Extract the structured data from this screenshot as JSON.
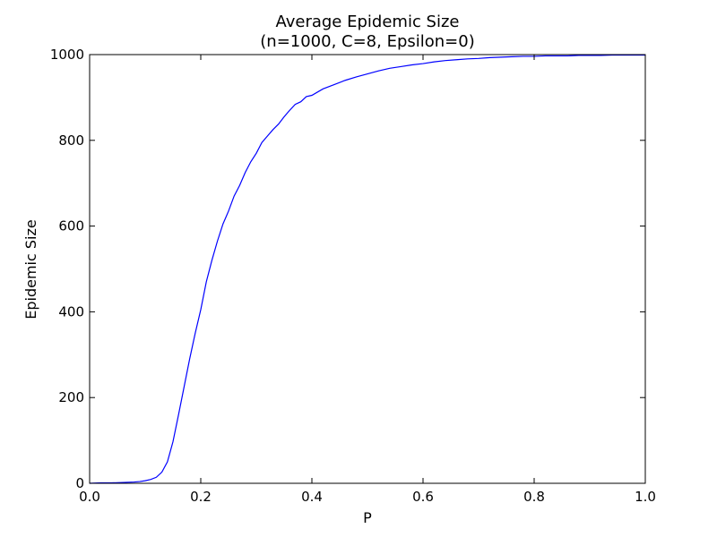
{
  "chart_data": {
    "type": "line",
    "title": "Average Epidemic Size",
    "subtitle": "(n=1000, C=8, Epsilon=0)",
    "xlabel": "P",
    "ylabel": "Epidemic Size",
    "xlim": [
      0.0,
      1.0
    ],
    "ylim": [
      0,
      1000
    ],
    "xticks": [
      "0.0",
      "0.2",
      "0.4",
      "0.6",
      "0.8",
      "1.0"
    ],
    "yticks": [
      "0",
      "200",
      "400",
      "600",
      "800",
      "1000"
    ],
    "grid": false,
    "line_color": "#0000ff",
    "series": [
      {
        "x": [
          0.0,
          0.02,
          0.04,
          0.06,
          0.08,
          0.09,
          0.1,
          0.11,
          0.12,
          0.13,
          0.14,
          0.15,
          0.16,
          0.17,
          0.18,
          0.19,
          0.2,
          0.21,
          0.22,
          0.23,
          0.24,
          0.25,
          0.26,
          0.27,
          0.28,
          0.29,
          0.3,
          0.31,
          0.32,
          0.33,
          0.34,
          0.35,
          0.36,
          0.37,
          0.38,
          0.39,
          0.4,
          0.42,
          0.44,
          0.46,
          0.48,
          0.5,
          0.52,
          0.54,
          0.56,
          0.58,
          0.6,
          0.62,
          0.64,
          0.66,
          0.68,
          0.7,
          0.72,
          0.74,
          0.76,
          0.78,
          0.8,
          0.82,
          0.84,
          0.86,
          0.88,
          0.9,
          0.92,
          0.94,
          0.96,
          0.98,
          1.0
        ],
        "y": [
          0,
          1,
          1,
          2,
          3,
          4,
          6,
          9,
          14,
          26,
          50,
          97,
          160,
          225,
          290,
          350,
          405,
          470,
          520,
          565,
          605,
          635,
          670,
          695,
          725,
          750,
          770,
          795,
          810,
          825,
          838,
          855,
          870,
          884,
          890,
          902,
          905,
          920,
          930,
          940,
          948,
          955,
          962,
          968,
          972,
          976,
          979,
          983,
          986,
          988,
          990,
          991,
          993,
          994,
          995,
          996,
          996,
          997,
          997,
          997,
          998,
          998,
          998,
          999,
          999,
          999,
          999
        ]
      }
    ]
  }
}
